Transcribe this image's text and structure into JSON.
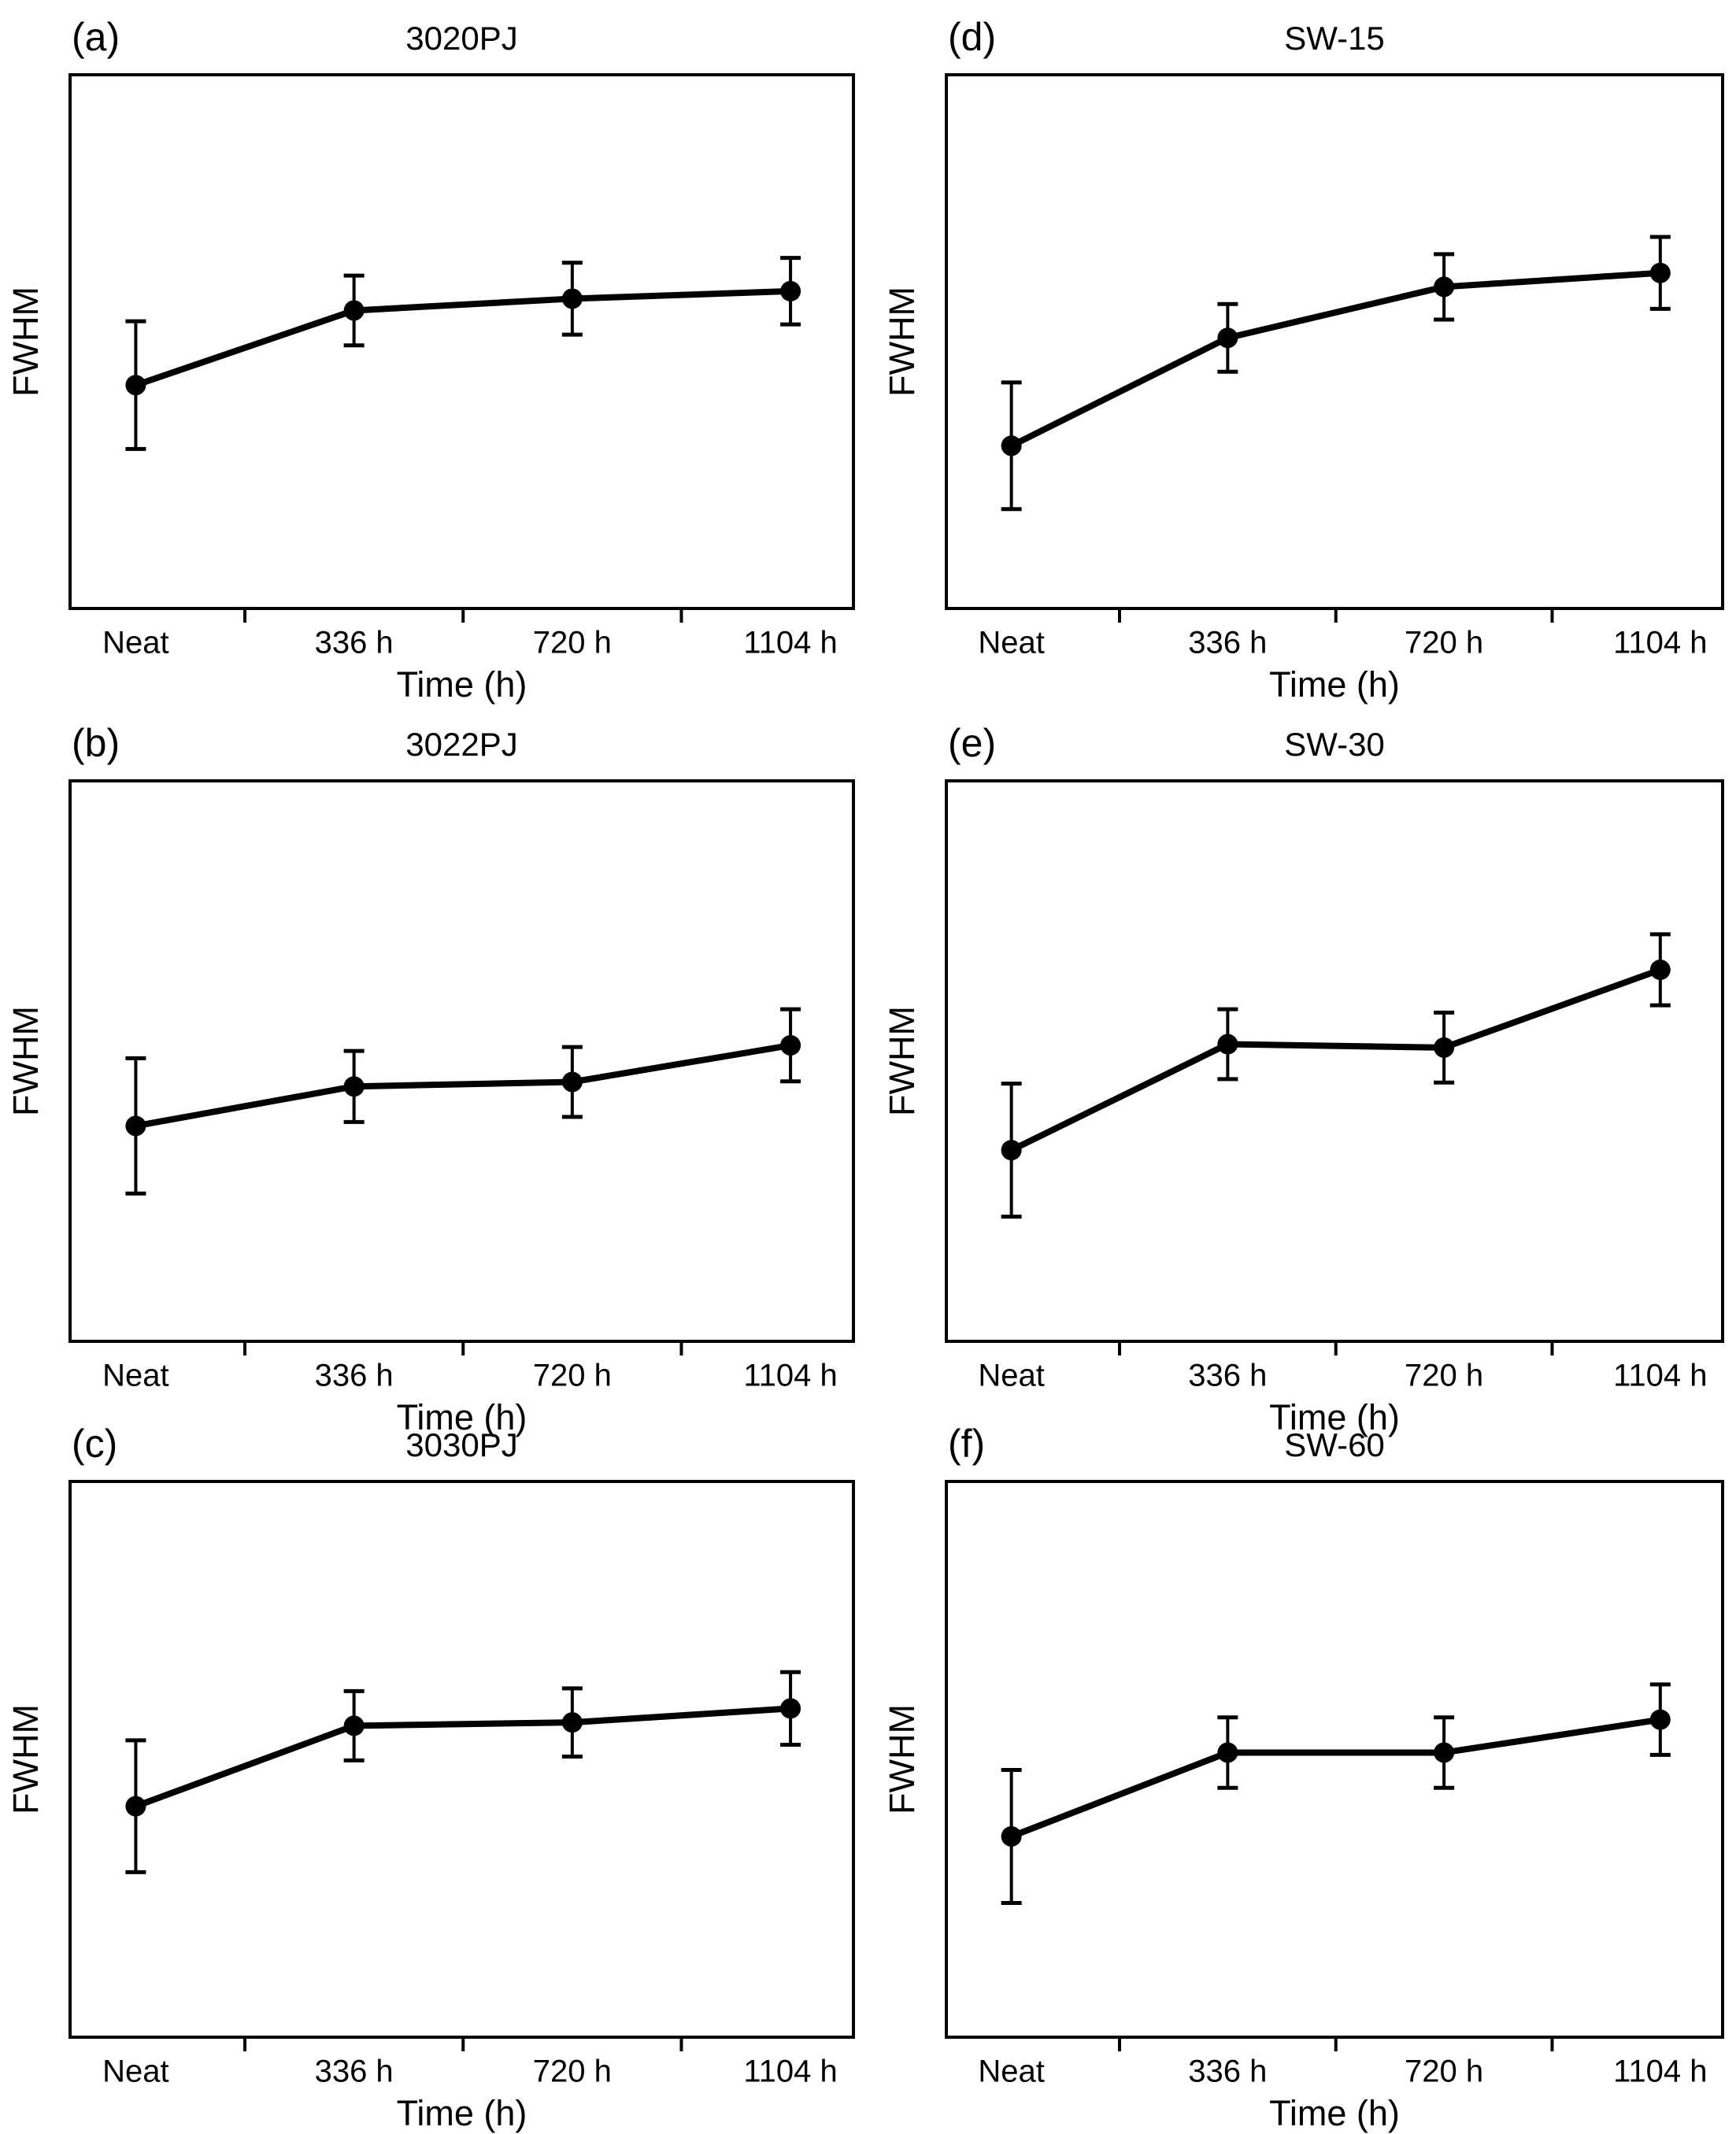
{
  "figure": {
    "background_color": "#ffffff",
    "ink_color": "#000000",
    "x_axis_label": "Time (h)",
    "y_axis_label": "FWHM",
    "categories": [
      "Neat",
      "336 h",
      "720 h",
      "1104 h"
    ],
    "note": "Six-panel line figure; y axes have no numeric tick labels, so values are expressed as fraction of panel plot height (FWHM, arbitrary units). Error bars are symmetric.",
    "panel_letters": [
      "(a)",
      "(b)",
      "(c)",
      "(d)",
      "(e)",
      "(f)"
    ],
    "panel_titles": [
      "3020PJ",
      "3022PJ",
      "3030PJ",
      "SW-15",
      "SW-30",
      "SW-60"
    ]
  },
  "chart_data": [
    {
      "id": "a",
      "type": "line",
      "panel_letter": "(a)",
      "title": "3020PJ",
      "xlabel": "Time (h)",
      "ylabel": "FWHM",
      "categories": [
        "Neat",
        "336 h",
        "720 h",
        "1104 h"
      ],
      "y_units": "arbitrary (no y tick labels shown); values are fraction of plot height",
      "values_frac": [
        0.419,
        0.558,
        0.58,
        0.594
      ],
      "errors_frac": [
        0.119,
        0.065,
        0.067,
        0.062
      ],
      "marker": "filled-circle",
      "error_bars": true,
      "grid": false,
      "legend": "none"
    },
    {
      "id": "b",
      "type": "line",
      "panel_letter": "(b)",
      "title": "3022PJ",
      "xlabel": "Time (h)",
      "ylabel": "FWHM",
      "categories": [
        "Neat",
        "336 h",
        "720 h",
        "1104 h"
      ],
      "y_units": "arbitrary (no y tick labels shown); values are fraction of plot height",
      "values_frac": [
        0.385,
        0.455,
        0.463,
        0.528
      ],
      "errors_frac": [
        0.12,
        0.063,
        0.062,
        0.064
      ],
      "marker": "filled-circle",
      "error_bars": true,
      "grid": false,
      "legend": "none"
    },
    {
      "id": "c",
      "type": "line",
      "panel_letter": "(c)",
      "title": "3030PJ",
      "xlabel": "Time (h)",
      "ylabel": "FWHM",
      "categories": [
        "Neat",
        "336 h",
        "720 h",
        "1104 h"
      ],
      "y_units": "arbitrary (no y tick labels shown); values are fraction of plot height",
      "values_frac": [
        0.416,
        0.56,
        0.566,
        0.591
      ],
      "errors_frac": [
        0.118,
        0.062,
        0.061,
        0.065
      ],
      "marker": "filled-circle",
      "error_bars": true,
      "grid": false,
      "legend": "none"
    },
    {
      "id": "d",
      "type": "line",
      "panel_letter": "(d)",
      "title": "SW-15",
      "xlabel": "Time (h)",
      "ylabel": "FWHM",
      "categories": [
        "Neat",
        "336 h",
        "720 h",
        "1104 h"
      ],
      "y_units": "arbitrary (no y tick labels shown); values are fraction of plot height",
      "values_frac": [
        0.306,
        0.507,
        0.602,
        0.628
      ],
      "errors_frac": [
        0.118,
        0.063,
        0.061,
        0.067
      ],
      "marker": "filled-circle",
      "error_bars": true,
      "grid": false,
      "legend": "none"
    },
    {
      "id": "e",
      "type": "line",
      "panel_letter": "(e)",
      "title": "SW-30",
      "xlabel": "Time (h)",
      "ylabel": "FWHM",
      "categories": [
        "Neat",
        "336 h",
        "720 h",
        "1104 h"
      ],
      "y_units": "arbitrary (no y tick labels shown); values are fraction of plot height",
      "values_frac": [
        0.342,
        0.53,
        0.524,
        0.662
      ],
      "errors_frac": [
        0.118,
        0.062,
        0.062,
        0.063
      ],
      "marker": "filled-circle",
      "error_bars": true,
      "grid": false,
      "legend": "none"
    },
    {
      "id": "f",
      "type": "line",
      "panel_letter": "(f)",
      "title": "SW-60",
      "xlabel": "Time (h)",
      "ylabel": "FWHM",
      "categories": [
        "Neat",
        "336 h",
        "720 h",
        "1104 h"
      ],
      "y_units": "arbitrary (no y tick labels shown); values are fraction of plot height",
      "values_frac": [
        0.362,
        0.512,
        0.512,
        0.571
      ],
      "errors_frac": [
        0.119,
        0.063,
        0.063,
        0.063
      ],
      "marker": "filled-circle",
      "error_bars": true,
      "grid": false,
      "legend": "none"
    }
  ]
}
